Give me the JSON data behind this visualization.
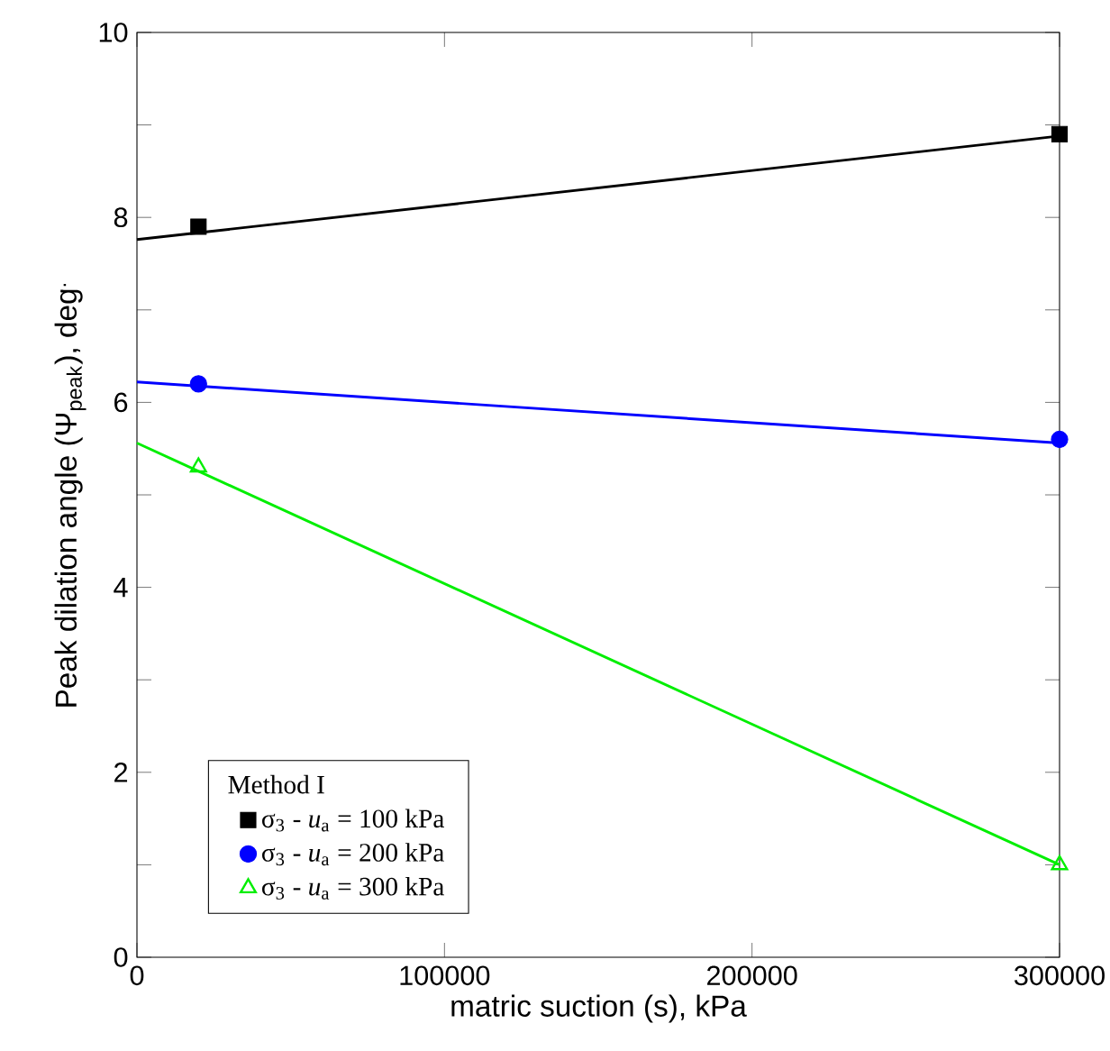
{
  "chart_data": {
    "type": "scatter",
    "xlabel": "matric suction (s), kPa",
    "ylabel": "Peak dilation angle (Ψ$_{peak}$), deg$^{.}$",
    "legend_title": "Method I",
    "legend": "bottom left",
    "grid": false,
    "xlim": [
      0,
      300000
    ],
    "ylim": [
      0,
      10
    ],
    "xticks": [
      0,
      100000,
      200000,
      300000
    ],
    "yticks": [
      0,
      {
        "value": 1,
        "label": null
      },
      2,
      {
        "value": 3,
        "label": null
      },
      4,
      {
        "value": 5,
        "label": null
      },
      6,
      {
        "value": 7,
        "label": null
      },
      8,
      {
        "value": 9,
        "label": null
      },
      10
    ],
    "series": [
      {
        "name": "σ$_{3}$ - *u*$_{a}$ = 100 kPa",
        "color": "#000000",
        "marker": "square",
        "x": [
          20000,
          300000
        ],
        "values": [
          7.9,
          8.9
        ]
      },
      {
        "name": "σ$_{3}$ - *u*$_{a}$ = 200 kPa",
        "color": "#0000ff",
        "marker": "circle",
        "x": [
          20000,
          300000
        ],
        "values": [
          6.2,
          5.6
        ]
      },
      {
        "name": "σ$_{3}$ - *u*$_{a}$ = 300 kPa",
        "color": "#00ee00",
        "marker": "triangle",
        "x": [
          20000,
          300000
        ],
        "values": [
          5.3,
          1.0
        ]
      },
      {
        "type": "line",
        "color": "#000000",
        "marker": "none",
        "x": [
          0,
          300000
        ],
        "values": [
          7.76,
          8.88
        ]
      },
      {
        "type": "line",
        "color": "#0000ff",
        "marker": "none",
        "x": [
          0,
          300000
        ],
        "values": [
          6.22,
          5.56
        ]
      },
      {
        "type": "line",
        "color": "#00ee00",
        "marker": "none",
        "x": [
          0,
          300000
        ],
        "values": [
          5.56,
          1.0
        ]
      }
    ]
  }
}
